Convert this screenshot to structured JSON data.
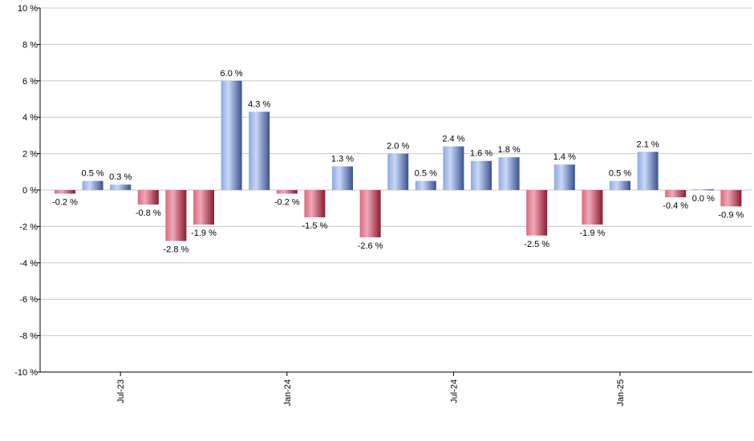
{
  "chart_data": {
    "type": "bar",
    "title": "",
    "xlabel": "",
    "ylabel": "",
    "ylim": [
      -10,
      10
    ],
    "y_ticks": [
      10,
      8,
      6,
      4,
      2,
      0,
      -2,
      -4,
      -6,
      -8,
      -10
    ],
    "y_tick_labels": [
      "10 %",
      "8 %",
      "6 %",
      "4 %",
      "2 %",
      "0 %",
      "-2 %",
      "-4 %",
      "-6 %",
      "-8 %",
      "-10 %"
    ],
    "grid": true,
    "values": [
      -0.2,
      0.5,
      0.3,
      -0.8,
      -2.8,
      -1.9,
      6.0,
      4.3,
      -0.2,
      -1.5,
      1.3,
      -2.6,
      2.0,
      0.5,
      2.4,
      1.6,
      1.8,
      -2.5,
      1.4,
      -1.9,
      0.5,
      2.1,
      -0.4,
      0.0,
      -0.9
    ],
    "value_labels": [
      "-0.2 %",
      "0.5 %",
      "0.3 %",
      "-0.8 %",
      "-2.8 %",
      "-1.9 %",
      "6.0 %",
      "4.3 %",
      "-0.2 %",
      "-1.5 %",
      "1.3 %",
      "-2.6 %",
      "2.0 %",
      "0.5 %",
      "2.4 %",
      "1.6 %",
      "1.8 %",
      "-2.5 %",
      "1.4 %",
      "-1.9 %",
      "0.5 %",
      "2.1 %",
      "-0.4 %",
      "0.0 %",
      "-0.9 %"
    ],
    "x_tick_labels": [
      {
        "index": 2,
        "label": "Jul-23"
      },
      {
        "index": 8,
        "label": "Jan-24"
      },
      {
        "index": 14,
        "label": "Jul-24"
      },
      {
        "index": 20,
        "label": "Jan-25"
      }
    ],
    "colors": {
      "positive_light": "#b4c9f1",
      "positive_mid": "#7e9fe0",
      "positive_dark": "#3a5290",
      "negative_light": "#e89aa8",
      "negative_mid": "#d14a64",
      "negative_dark": "#8c1a30",
      "grid": "#c8c8c8",
      "axis": "#000000"
    }
  }
}
